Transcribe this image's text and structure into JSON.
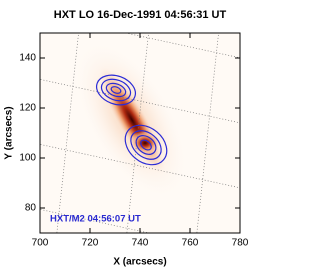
{
  "chart_data": {
    "type": "image",
    "title": "HXT LO 16-Dec-1991 04:56:31 UT",
    "x_label": "X (arcsecs)",
    "y_label": "Y (arcsecs)",
    "annotation": "HXT/M2 04:56:07 UT",
    "xlim": [
      700,
      780
    ],
    "xticks": [
      700,
      720,
      740,
      760,
      780
    ],
    "ylim": [
      70,
      150
    ],
    "yticks": [
      80,
      100,
      120,
      140
    ]
  }
}
